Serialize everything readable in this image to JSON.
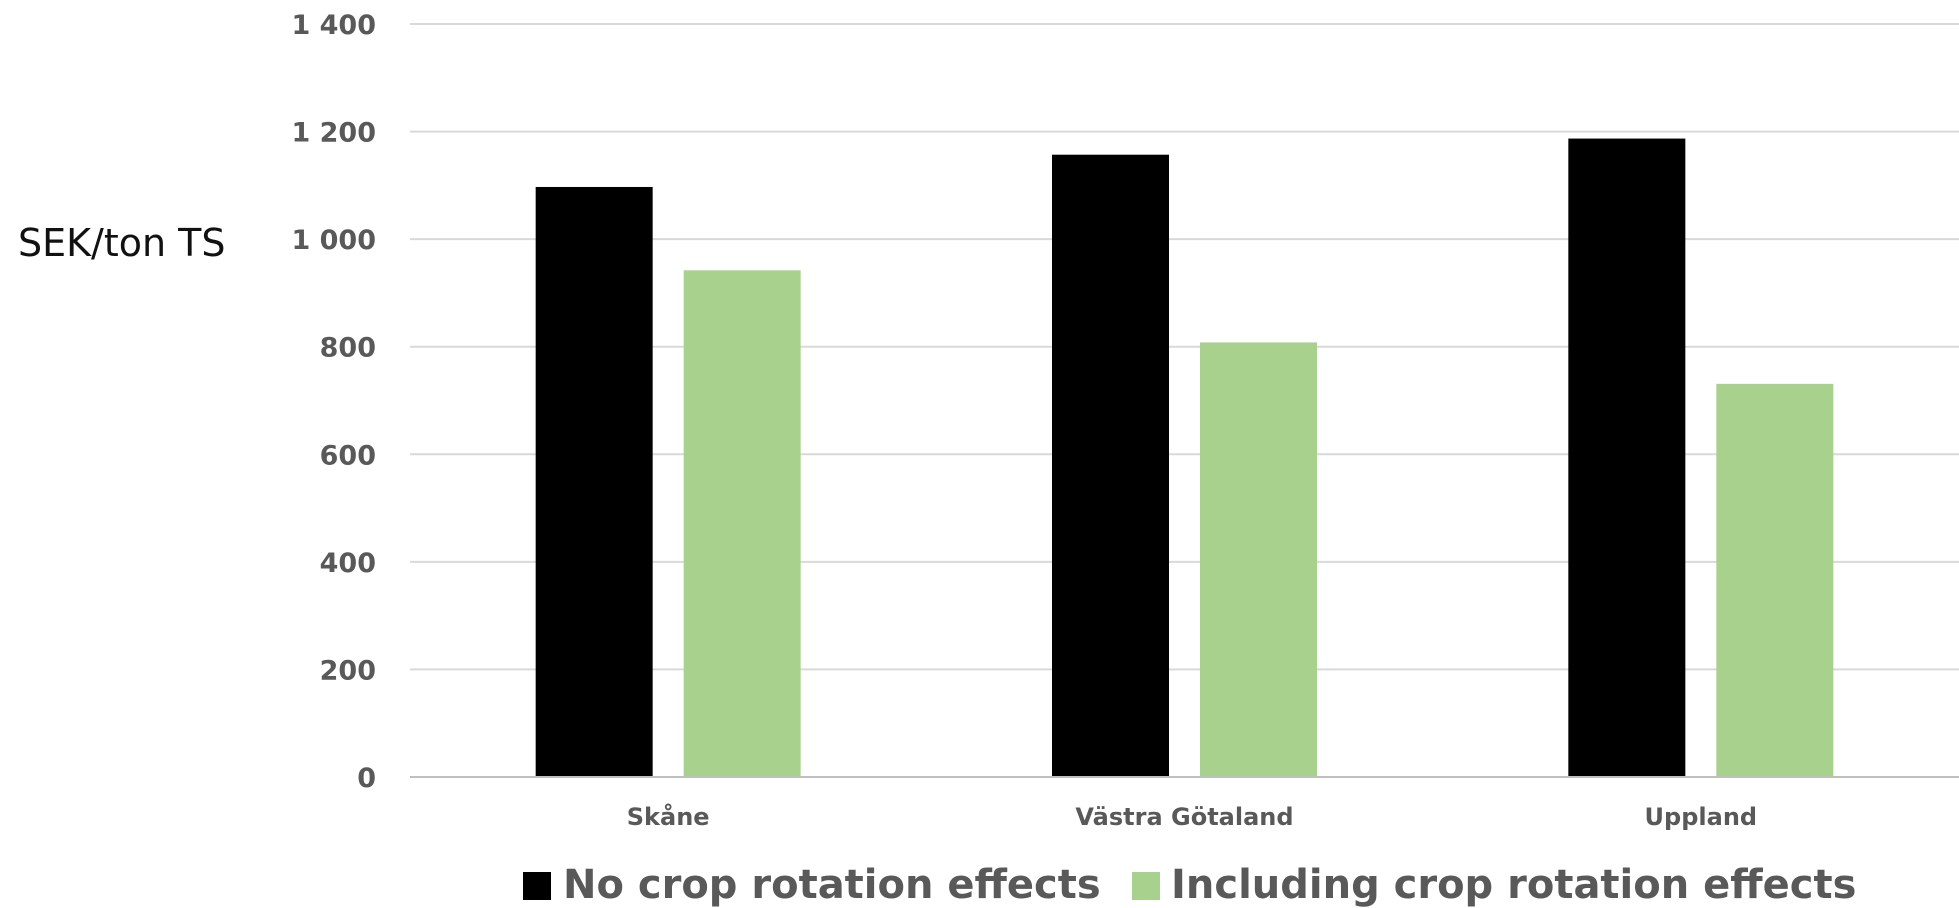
{
  "chart_data": {
    "type": "bar",
    "ylabel": "SEK/ton TS",
    "xlabel": "",
    "categories": [
      "Skåne",
      "Västra Götaland",
      "Uppland"
    ],
    "series": [
      {
        "name": "No crop rotation effects",
        "color": "#000000",
        "values": [
          1097,
          1157,
          1187
        ]
      },
      {
        "name": "Including crop rotation effects",
        "color": "#a9d18e",
        "values": [
          942,
          808,
          731
        ]
      }
    ],
    "ylim": [
      0,
      1400
    ],
    "yticks": [
      0,
      200,
      400,
      600,
      800,
      1000,
      1200,
      1400
    ],
    "ytick_labels": [
      "0",
      "200",
      "400",
      "600",
      "800",
      "1 000",
      "1 200",
      "1 400"
    ],
    "grid": true,
    "legend_position": "bottom"
  }
}
